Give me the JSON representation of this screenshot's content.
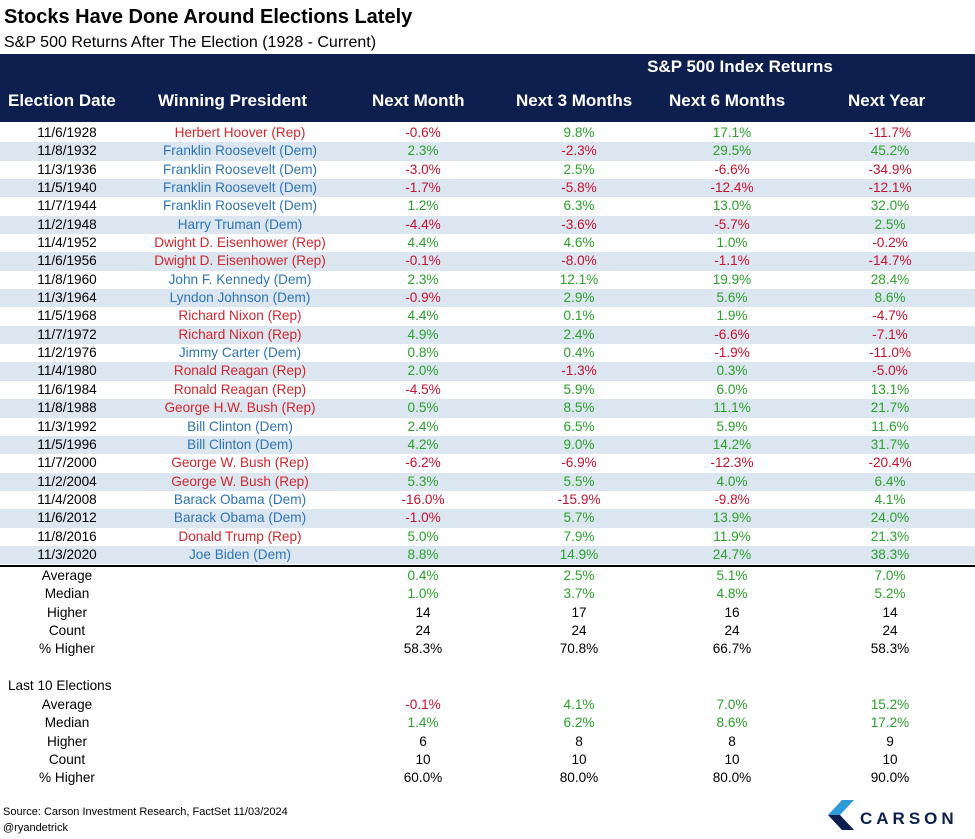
{
  "title": "Stocks Have Done Around Elections Lately",
  "subtitle": "S&P 500 Returns After The Election (1928 - Current)",
  "header": {
    "group": "S&P 500 Index Returns",
    "columns": [
      "Election Date",
      "Winning President",
      "Next Month",
      "Next 3 Months",
      "Next 6 Months",
      "Next Year"
    ]
  },
  "chart_data": {
    "type": "table",
    "columns": [
      "Election Date",
      "Winning President",
      "Next Month",
      "Next 3 Months",
      "Next 6 Months",
      "Next Year"
    ],
    "rows": [
      {
        "date": "11/6/1928",
        "president": "Herbert Hoover (Rep)",
        "party": "rep",
        "m1": "-0.6%",
        "m3": "9.8%",
        "m6": "17.1%",
        "y1": "-11.7%"
      },
      {
        "date": "11/8/1932",
        "president": "Franklin Roosevelt (Dem)",
        "party": "dem",
        "m1": "2.3%",
        "m3": "-2.3%",
        "m6": "29.5%",
        "y1": "45.2%"
      },
      {
        "date": "11/3/1936",
        "president": "Franklin Roosevelt (Dem)",
        "party": "dem",
        "m1": "-3.0%",
        "m3": "2.5%",
        "m6": "-6.6%",
        "y1": "-34.9%"
      },
      {
        "date": "11/5/1940",
        "president": "Franklin Roosevelt (Dem)",
        "party": "dem",
        "m1": "-1.7%",
        "m3": "-5.8%",
        "m6": "-12.4%",
        "y1": "-12.1%"
      },
      {
        "date": "11/7/1944",
        "president": "Franklin Roosevelt (Dem)",
        "party": "dem",
        "m1": "1.2%",
        "m3": "6.3%",
        "m6": "13.0%",
        "y1": "32.0%"
      },
      {
        "date": "11/2/1948",
        "president": "Harry Truman (Dem)",
        "party": "dem",
        "m1": "-4.4%",
        "m3": "-3.6%",
        "m6": "-5.7%",
        "y1": "2.5%"
      },
      {
        "date": "11/4/1952",
        "president": "Dwight D. Eisenhower (Rep)",
        "party": "rep",
        "m1": "4.4%",
        "m3": "4.6%",
        "m6": "1.0%",
        "y1": "-0.2%"
      },
      {
        "date": "11/6/1956",
        "president": "Dwight D. Eisenhower (Rep)",
        "party": "rep",
        "m1": "-0.1%",
        "m3": "-8.0%",
        "m6": "-1.1%",
        "y1": "-14.7%"
      },
      {
        "date": "11/8/1960",
        "president": "John F. Kennedy (Dem)",
        "party": "dem",
        "m1": "2.3%",
        "m3": "12.1%",
        "m6": "19.9%",
        "y1": "28.4%"
      },
      {
        "date": "11/3/1964",
        "president": "Lyndon Johnson (Dem)",
        "party": "dem",
        "m1": "-0.9%",
        "m3": "2.9%",
        "m6": "5.6%",
        "y1": "8.6%"
      },
      {
        "date": "11/5/1968",
        "president": "Richard Nixon (Rep)",
        "party": "rep",
        "m1": "4.4%",
        "m3": "0.1%",
        "m6": "1.9%",
        "y1": "-4.7%"
      },
      {
        "date": "11/7/1972",
        "president": "Richard Nixon (Rep)",
        "party": "rep",
        "m1": "4.9%",
        "m3": "2.4%",
        "m6": "-6.6%",
        "y1": "-7.1%"
      },
      {
        "date": "11/2/1976",
        "president": "Jimmy Carter (Dem)",
        "party": "dem",
        "m1": "0.8%",
        "m3": "0.4%",
        "m6": "-1.9%",
        "y1": "-11.0%"
      },
      {
        "date": "11/4/1980",
        "president": "Ronald Reagan (Rep)",
        "party": "rep",
        "m1": "2.0%",
        "m3": "-1.3%",
        "m6": "0.3%",
        "y1": "-5.0%"
      },
      {
        "date": "11/6/1984",
        "president": "Ronald Reagan (Rep)",
        "party": "rep",
        "m1": "-4.5%",
        "m3": "5.9%",
        "m6": "6.0%",
        "y1": "13.1%"
      },
      {
        "date": "11/8/1988",
        "president": "George H.W. Bush (Rep)",
        "party": "rep",
        "m1": "0.5%",
        "m3": "8.5%",
        "m6": "11.1%",
        "y1": "21.7%"
      },
      {
        "date": "11/3/1992",
        "president": "Bill Clinton (Dem)",
        "party": "dem",
        "m1": "2.4%",
        "m3": "6.5%",
        "m6": "5.9%",
        "y1": "11.6%"
      },
      {
        "date": "11/5/1996",
        "president": "Bill Clinton (Dem)",
        "party": "dem",
        "m1": "4.2%",
        "m3": "9.0%",
        "m6": "14.2%",
        "y1": "31.7%"
      },
      {
        "date": "11/7/2000",
        "president": "George W. Bush (Rep)",
        "party": "rep",
        "m1": "-6.2%",
        "m3": "-6.9%",
        "m6": "-12.3%",
        "y1": "-20.4%"
      },
      {
        "date": "11/2/2004",
        "president": "George W. Bush (Rep)",
        "party": "rep",
        "m1": "5.3%",
        "m3": "5.5%",
        "m6": "4.0%",
        "y1": "6.4%"
      },
      {
        "date": "11/4/2008",
        "president": "Barack Obama (Dem)",
        "party": "dem",
        "m1": "-16.0%",
        "m3": "-15.9%",
        "m6": "-9.8%",
        "y1": "4.1%"
      },
      {
        "date": "11/6/2012",
        "president": "Barack Obama (Dem)",
        "party": "dem",
        "m1": "-1.0%",
        "m3": "5.7%",
        "m6": "13.9%",
        "y1": "24.0%"
      },
      {
        "date": "11/8/2016",
        "president": "Donald Trump (Rep)",
        "party": "rep",
        "m1": "5.0%",
        "m3": "7.9%",
        "m6": "11.9%",
        "y1": "21.3%"
      },
      {
        "date": "11/3/2020",
        "president": "Joe Biden (Dem)",
        "party": "dem",
        "m1": "8.8%",
        "m3": "14.9%",
        "m6": "24.7%",
        "y1": "38.3%"
      }
    ],
    "summary_all": [
      {
        "label": "Average",
        "m1": "0.4%",
        "m3": "2.5%",
        "m6": "5.1%",
        "y1": "7.0%",
        "colored": true
      },
      {
        "label": "Median",
        "m1": "1.0%",
        "m3": "3.7%",
        "m6": "4.8%",
        "y1": "5.2%",
        "colored": true
      },
      {
        "label": "Higher",
        "m1": "14",
        "m3": "17",
        "m6": "16",
        "y1": "14",
        "colored": false
      },
      {
        "label": "Count",
        "m1": "24",
        "m3": "24",
        "m6": "24",
        "y1": "24",
        "colored": false
      },
      {
        "label": "% Higher",
        "m1": "58.3%",
        "m3": "70.8%",
        "m6": "66.7%",
        "y1": "58.3%",
        "colored": false
      }
    ],
    "summary_last10_label": "Last 10 Elections",
    "summary_last10": [
      {
        "label": "Average",
        "m1": "-0.1%",
        "m3": "4.1%",
        "m6": "7.0%",
        "y1": "15.2%",
        "colored": true
      },
      {
        "label": "Median",
        "m1": "1.4%",
        "m3": "6.2%",
        "m6": "8.6%",
        "y1": "17.2%",
        "colored": true
      },
      {
        "label": "Higher",
        "m1": "6",
        "m3": "8",
        "m6": "8",
        "y1": "9",
        "colored": false
      },
      {
        "label": "Count",
        "m1": "10",
        "m3": "10",
        "m6": "10",
        "y1": "10",
        "colored": false
      },
      {
        "label": "% Higher",
        "m1": "60.0%",
        "m3": "80.0%",
        "m6": "80.0%",
        "y1": "90.0%",
        "colored": false
      }
    ]
  },
  "colors": {
    "header_bg": "#0c1f4e",
    "band": "#dce6f1",
    "rep": "#d0262c",
    "dem": "#2e74b5",
    "positive": "#2ca02c",
    "negative": "#c8102e"
  },
  "footer": {
    "source": "Source: Carson Investment Research, FactSet 11/03/2024",
    "handle": "@ryandetrick",
    "logo_text": "CARSON"
  }
}
